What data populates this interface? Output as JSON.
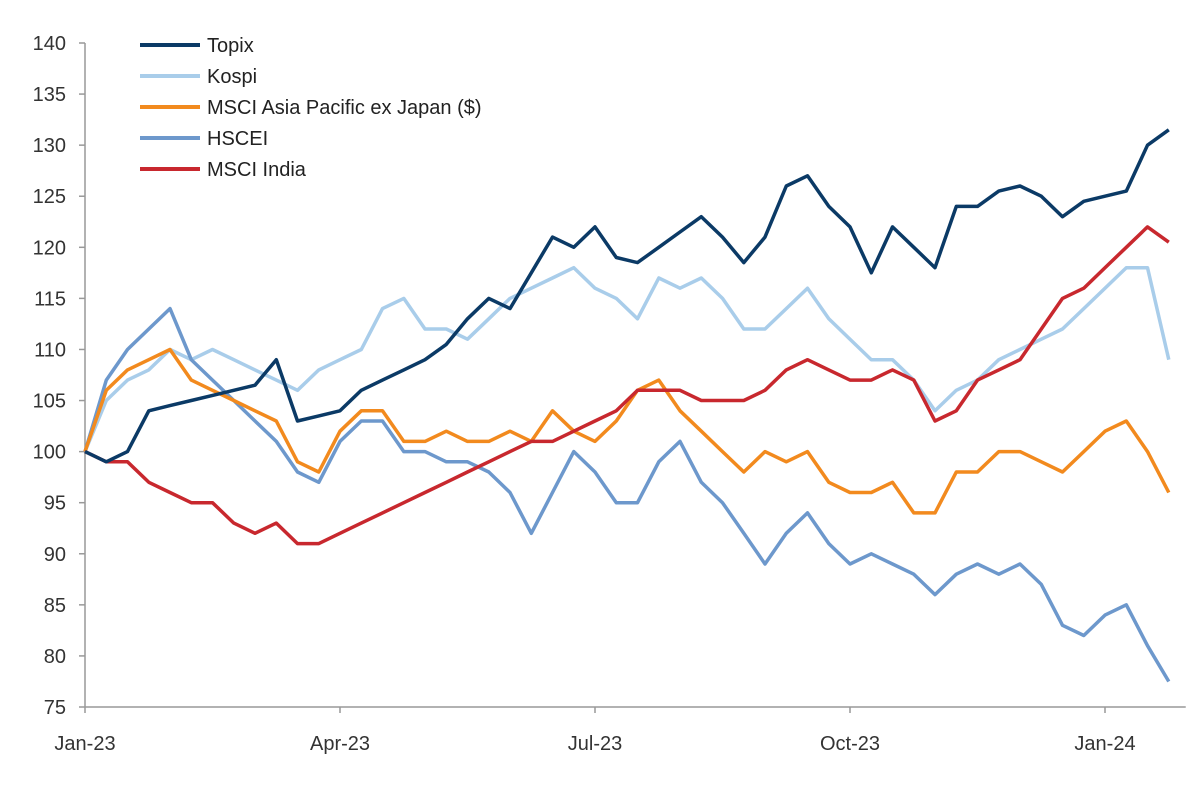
{
  "chart_data": {
    "type": "line",
    "title": "",
    "xlabel": "",
    "ylabel": "",
    "ylim": [
      75,
      140
    ],
    "yticks": [
      "140",
      "135",
      "130",
      "125",
      "120",
      "115",
      "110",
      "105",
      "100",
      "95",
      "90",
      "85",
      "80",
      "75"
    ],
    "xticks": [
      {
        "label": "Jan-23",
        "month": 0
      },
      {
        "label": "Apr-23",
        "month": 3
      },
      {
        "label": "Jul-23",
        "month": 6
      },
      {
        "label": "Oct-23",
        "month": 9
      },
      {
        "label": "Jan-24",
        "month": 12
      }
    ],
    "xlim_months": [
      0,
      12.75
    ],
    "legend_position": "top-left",
    "x_months": [
      0,
      0.25,
      0.5,
      0.75,
      1,
      1.25,
      1.5,
      1.75,
      2,
      2.25,
      2.5,
      2.75,
      3,
      3.25,
      3.5,
      3.75,
      4,
      4.25,
      4.5,
      4.75,
      5,
      5.25,
      5.5,
      5.75,
      6,
      6.25,
      6.5,
      6.75,
      7,
      7.25,
      7.5,
      7.75,
      8,
      8.25,
      8.5,
      8.75,
      9,
      9.25,
      9.5,
      9.75,
      10,
      10.25,
      10.5,
      10.75,
      11,
      11.25,
      11.5,
      11.75,
      12,
      12.25,
      12.5,
      12.75
    ],
    "series": [
      {
        "name": "Topix",
        "color": "#0b3a66",
        "values": [
          100,
          99,
          100,
          104,
          104.5,
          105,
          105.5,
          106,
          106.5,
          109,
          103,
          103.5,
          104,
          106,
          107,
          108,
          109,
          110.5,
          113,
          115,
          114,
          117.5,
          121,
          120,
          122,
          119,
          118.5,
          120,
          121.5,
          123,
          121,
          118.5,
          121,
          126,
          127,
          124,
          122,
          117.5,
          122,
          120,
          118,
          124,
          124,
          125.5,
          126,
          125,
          123,
          124.5,
          125,
          125.5,
          130,
          131.5
        ]
      },
      {
        "name": "Kospi",
        "color": "#a9cdea",
        "values": [
          100,
          105,
          107,
          108,
          110,
          109,
          110,
          109,
          108,
          107,
          106,
          108,
          109,
          110,
          114,
          115,
          112,
          112,
          111,
          113,
          115,
          116,
          117,
          118,
          116,
          115,
          113,
          117,
          116,
          117,
          115,
          112,
          112,
          114,
          116,
          113,
          111,
          109,
          109,
          107,
          104,
          106,
          107,
          109,
          110,
          111,
          112,
          114,
          116,
          118,
          118,
          109
        ]
      },
      {
        "name": "MSCI Asia Pacific ex Japan ($)",
        "color": "#f28a1e",
        "values": [
          100,
          106,
          108,
          109,
          110,
          107,
          106,
          105,
          104,
          103,
          99,
          98,
          102,
          104,
          104,
          101,
          101,
          102,
          101,
          101,
          102,
          101,
          104,
          102,
          101,
          103,
          106,
          107,
          104,
          102,
          100,
          98,
          100,
          99,
          100,
          97,
          96,
          96,
          97,
          94,
          94,
          98,
          98,
          100,
          100,
          99,
          98,
          100,
          102,
          103,
          100,
          96
        ]
      },
      {
        "name": "HSCEI",
        "color": "#6d98cc",
        "values": [
          100,
          107,
          110,
          112,
          114,
          109,
          107,
          105,
          103,
          101,
          98,
          97,
          101,
          103,
          103,
          100,
          100,
          99,
          99,
          98,
          96,
          92,
          96,
          100,
          98,
          95,
          95,
          99,
          101,
          97,
          95,
          92,
          89,
          92,
          94,
          91,
          89,
          90,
          89,
          88,
          86,
          88,
          89,
          88,
          89,
          87,
          83,
          82,
          84,
          85,
          81,
          77.5
        ]
      },
      {
        "name": "MSCI India",
        "color": "#c8282e",
        "values": [
          100,
          99,
          99,
          97,
          96,
          95,
          95,
          93,
          92,
          93,
          91,
          91,
          92,
          93,
          94,
          95,
          96,
          97,
          98,
          99,
          100,
          101,
          101,
          102,
          103,
          104,
          106,
          106,
          106,
          105,
          105,
          105,
          106,
          108,
          109,
          108,
          107,
          107,
          108,
          107,
          103,
          104,
          107,
          108,
          109,
          112,
          115,
          116,
          118,
          120,
          122,
          120.5
        ]
      }
    ]
  }
}
